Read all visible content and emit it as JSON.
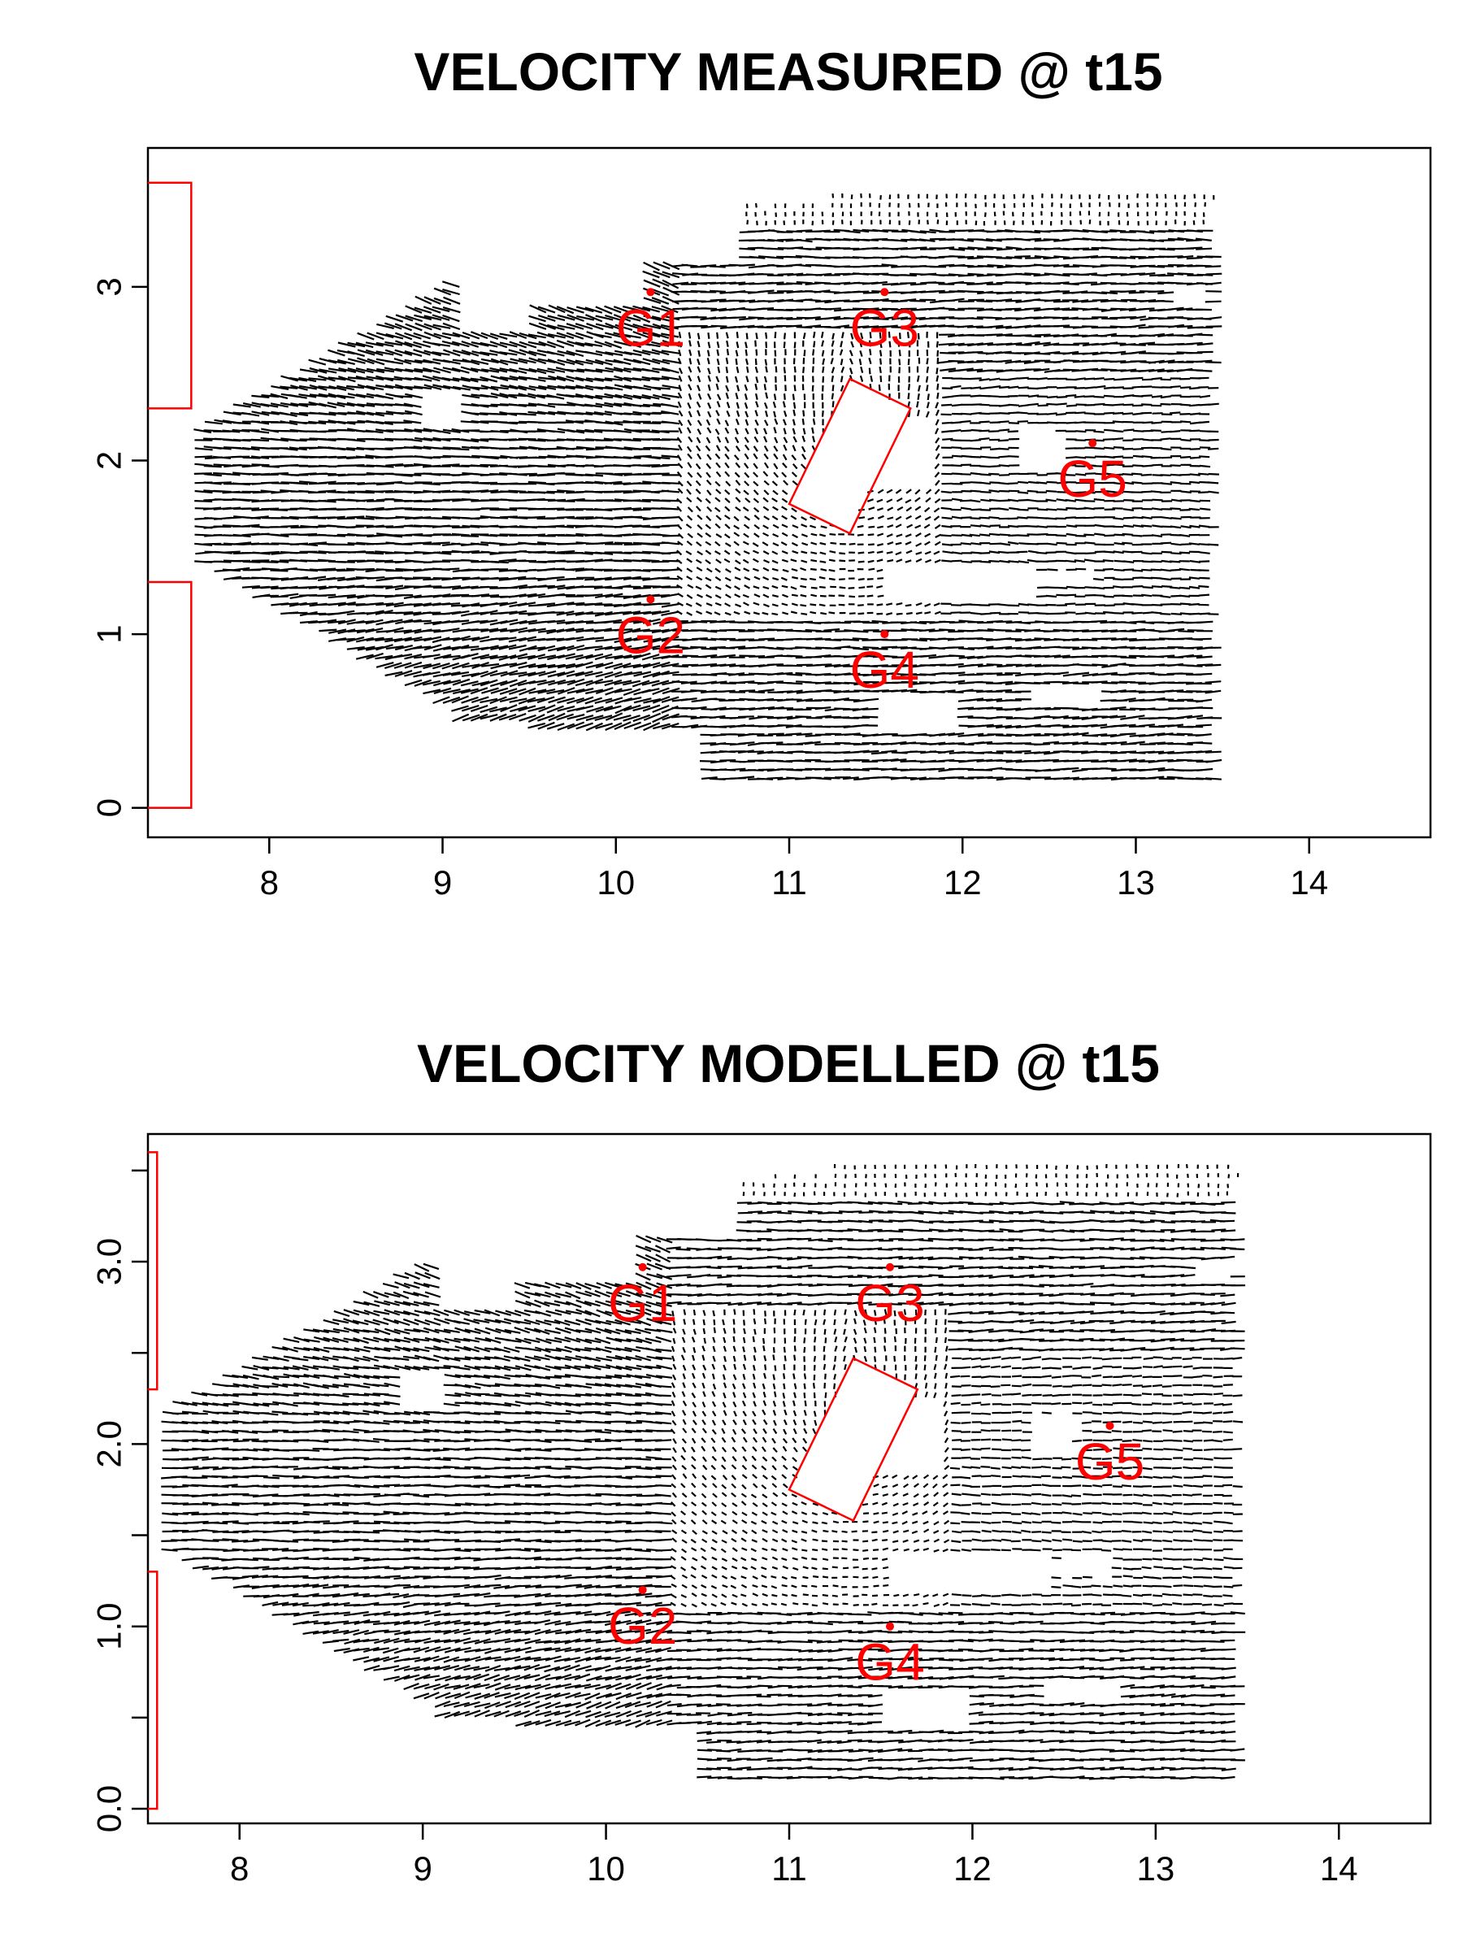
{
  "chart_data": [
    {
      "type": "quiver",
      "title": "VELOCITY MEASURED @ t15",
      "xlabel": "",
      "ylabel": "",
      "xlim": [
        7.3,
        14.7
      ],
      "ylim": [
        -0.17,
        3.8
      ],
      "x_ticks": [
        8,
        9,
        10,
        11,
        12,
        13,
        14
      ],
      "y_ticks": [
        0,
        1,
        2,
        3
      ],
      "y_tick_labels": [
        "0",
        "1",
        "2",
        "3"
      ],
      "grid": false,
      "vector_color": "#000000",
      "overlay_color": "#ff0000",
      "gauges": [
        {
          "name": "G1",
          "x": 10.2,
          "y": 2.97
        },
        {
          "name": "G2",
          "x": 10.2,
          "y": 1.2
        },
        {
          "name": "G3",
          "x": 11.55,
          "y": 2.97
        },
        {
          "name": "G4",
          "x": 11.55,
          "y": 1.0
        },
        {
          "name": "G5",
          "x": 12.75,
          "y": 2.1
        }
      ],
      "inlets": [
        {
          "x0": 7.3,
          "x1": 7.55,
          "y0": 2.3,
          "y1": 3.6
        },
        {
          "x0": 7.3,
          "x1": 7.55,
          "y0": 0.0,
          "y1": 1.3
        }
      ],
      "obstacle": [
        [
          11.0,
          1.75
        ],
        [
          11.35,
          2.47
        ],
        [
          11.7,
          2.3
        ],
        [
          11.35,
          1.58
        ]
      ]
    },
    {
      "type": "quiver",
      "title": "VELOCITY MODELLED @ t15",
      "xlabel": "",
      "ylabel": "",
      "xlim": [
        7.5,
        14.5
      ],
      "ylim": [
        -0.08,
        3.7
      ],
      "x_ticks": [
        8,
        9,
        10,
        11,
        12,
        13,
        14
      ],
      "y_ticks": [
        0,
        0.5,
        1,
        1.5,
        2,
        2.5,
        3,
        3.5
      ],
      "y_tick_labels": [
        "0.0",
        "",
        "1.0",
        "",
        "2.0",
        "",
        "3.0",
        ""
      ],
      "grid": false,
      "vector_color": "#000000",
      "overlay_color": "#ff0000",
      "gauges": [
        {
          "name": "G1",
          "x": 10.2,
          "y": 2.97
        },
        {
          "name": "G2",
          "x": 10.2,
          "y": 1.2
        },
        {
          "name": "G3",
          "x": 11.55,
          "y": 2.97
        },
        {
          "name": "G4",
          "x": 11.55,
          "y": 1.0
        },
        {
          "name": "G5",
          "x": 12.75,
          "y": 2.1
        }
      ],
      "inlets": [
        {
          "x0": 7.5,
          "x1": 7.55,
          "y0": 2.3,
          "y1": 3.6
        },
        {
          "x0": 7.5,
          "x1": 7.55,
          "y0": 0.0,
          "y1": 1.3
        }
      ],
      "obstacle": [
        [
          11.0,
          1.75
        ],
        [
          11.35,
          2.47
        ],
        [
          11.7,
          2.3
        ],
        [
          11.35,
          1.58
        ]
      ]
    }
  ]
}
